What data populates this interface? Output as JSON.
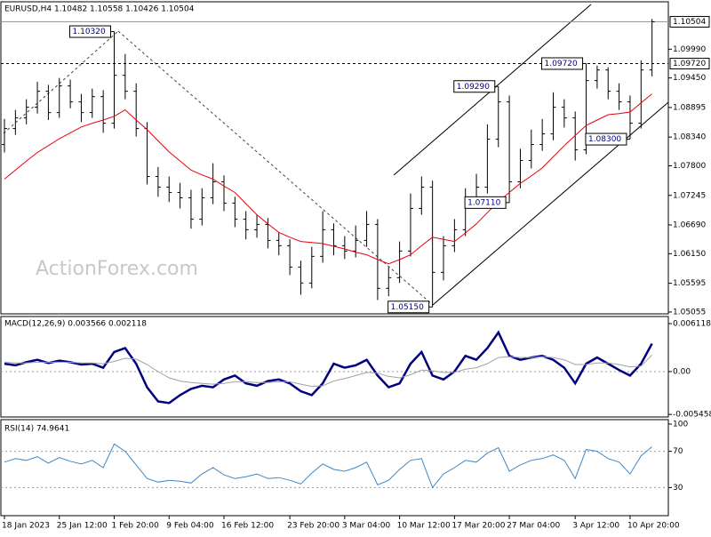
{
  "chart_data": [
    {
      "type": "ohlc",
      "title": "EURUSD,H4  1.10482 1.10558 1.10426 1.10504",
      "watermark": "ActionForex.com",
      "color": "#000000",
      "categories": [
        "18 Jan 2023",
        null,
        null,
        null,
        null,
        "25 Jan 12:00",
        null,
        null,
        null,
        null,
        "1 Feb 20:00",
        null,
        null,
        null,
        null,
        "9 Feb 04:00",
        null,
        null,
        null,
        null,
        "16 Feb 12:00",
        null,
        null,
        null,
        null,
        null,
        "23 Feb 20:00",
        null,
        null,
        null,
        null,
        "3 Mar 04:00",
        null,
        null,
        null,
        null,
        "10 Mar 12:00",
        null,
        null,
        null,
        null,
        "17 Mar 20:00",
        null,
        null,
        null,
        null,
        "27 Mar 04:00",
        null,
        null,
        null,
        null,
        null,
        "3 Apr 12:00",
        null,
        null,
        null,
        null,
        "10 Apr 20:00",
        null,
        null
      ],
      "open": [
        1.082,
        1.085,
        1.087,
        1.089,
        1.092,
        1.088,
        1.093,
        1.09,
        1.088,
        1.091,
        1.086,
        1.095,
        1.092,
        1.085,
        1.076,
        1.074,
        1.073,
        1.072,
        1.068,
        1.072,
        1.075,
        1.071,
        1.068,
        1.066,
        1.067,
        1.064,
        1.063,
        1.059,
        1.056,
        1.061,
        1.066,
        1.063,
        1.062,
        1.064,
        1.067,
        1.055,
        1.057,
        1.062,
        1.07,
        1.074,
        1.058,
        1.063,
        1.066,
        1.072,
        1.074,
        1.083,
        1.09,
        1.075,
        1.079,
        1.082,
        1.084,
        1.089,
        1.087,
        1.081,
        1.094,
        1.096,
        1.092,
        1.09,
        1.086,
        1.096
      ],
      "high": [
        1.0868,
        1.0885,
        1.0905,
        1.0938,
        1.0932,
        1.0945,
        1.0942,
        1.0915,
        1.0925,
        1.0922,
        1.1032,
        1.099,
        1.0935,
        1.0862,
        1.0778,
        1.076,
        1.0748,
        1.0735,
        1.0738,
        1.0785,
        1.0762,
        1.0722,
        1.0695,
        1.0688,
        1.0682,
        1.0655,
        1.0642,
        1.0602,
        1.0628,
        1.0695,
        1.0672,
        1.0648,
        1.0668,
        1.0695,
        1.068,
        1.059,
        1.0638,
        1.0728,
        1.076,
        1.0752,
        1.0648,
        1.068,
        1.0738,
        1.0765,
        1.0858,
        1.0929,
        1.0912,
        1.0812,
        1.0848,
        1.0868,
        1.0918,
        1.0905,
        1.0882,
        1.0972,
        1.0968,
        1.0965,
        1.0935,
        1.0912,
        1.0978,
        1.10558
      ],
      "low": [
        1.0805,
        1.0838,
        1.0858,
        1.0878,
        1.0866,
        1.087,
        1.0888,
        1.0862,
        1.087,
        1.0842,
        1.085,
        1.0905,
        1.0835,
        1.0745,
        1.0722,
        1.0712,
        1.07,
        1.0662,
        1.0668,
        1.0708,
        1.0695,
        1.0665,
        1.0642,
        1.0645,
        1.0625,
        1.0612,
        1.0575,
        1.0538,
        1.055,
        1.0598,
        1.0612,
        1.0605,
        1.0608,
        1.0628,
        1.0528,
        1.0535,
        1.056,
        1.061,
        1.0688,
        1.0515,
        1.0565,
        1.0618,
        1.0648,
        1.0705,
        1.0728,
        1.0815,
        1.0711,
        1.0738,
        1.0775,
        1.0808,
        1.0828,
        1.0852,
        1.079,
        1.0802,
        1.0925,
        1.0905,
        1.0885,
        1.083,
        1.085,
        1.0948
      ],
      "close": [
        1.085,
        1.087,
        1.089,
        1.092,
        1.088,
        1.093,
        1.09,
        1.088,
        1.091,
        1.086,
        1.095,
        1.092,
        1.085,
        1.076,
        1.074,
        1.073,
        1.072,
        1.068,
        1.072,
        1.075,
        1.071,
        1.068,
        1.066,
        1.067,
        1.064,
        1.063,
        1.059,
        1.056,
        1.061,
        1.066,
        1.063,
        1.062,
        1.064,
        1.067,
        1.055,
        1.057,
        1.062,
        1.07,
        1.074,
        1.058,
        1.063,
        1.066,
        1.072,
        1.074,
        1.083,
        1.09,
        1.075,
        1.079,
        1.082,
        1.084,
        1.089,
        1.087,
        1.081,
        1.094,
        1.096,
        1.092,
        1.09,
        1.086,
        1.096,
        1.10504
      ],
      "overlay": {
        "color": "#e8000b",
        "values": [
          1.0755,
          1.0772,
          1.0789,
          1.0805,
          1.0818,
          1.0831,
          1.0842,
          1.0853,
          1.086,
          1.0866,
          1.0873,
          1.0885,
          1.0866,
          1.0848,
          1.0827,
          1.0806,
          1.0789,
          1.0772,
          1.0763,
          1.0755,
          1.0742,
          1.073,
          1.0709,
          1.0688,
          1.0671,
          1.0655,
          1.0646,
          1.0638,
          1.0636,
          1.0634,
          1.0629,
          1.0624,
          1.0618,
          1.0613,
          1.0604,
          1.0596,
          1.0604,
          1.0613,
          1.063,
          1.0646,
          1.0642,
          1.0638,
          1.0654,
          1.0671,
          1.0692,
          1.0713,
          1.073,
          1.0747,
          1.0761,
          1.0776,
          1.0797,
          1.0818,
          1.0837,
          1.0856,
          1.0866,
          1.0876,
          1.0878,
          1.0881,
          1.0898,
          1.0915
        ]
      },
      "ylim": [
        1.05021,
        1.1088
      ],
      "yticks": [
        {
          "value": 1.0999,
          "label": "1.09990"
        },
        {
          "value": 1.0945,
          "label": "1.09450"
        },
        1.08895,
        {
          "value": 1.0834,
          "label": "1.08340"
        },
        {
          "value": 1.078,
          "label": "1.07800"
        },
        1.07245,
        {
          "value": 1.0669,
          "label": "1.06690"
        },
        {
          "value": 1.0615,
          "label": "1.06150"
        },
        1.05595,
        1.05055
      ],
      "price_lines": [
        {
          "value": 1.10504,
          "label": "1.10504",
          "style": "solid"
        },
        {
          "value": 1.0972,
          "label": "1.09720",
          "style": "dashed"
        }
      ],
      "annotations": [
        {
          "value": 1.1032,
          "label": "1.10320"
        },
        {
          "value": 1.0929,
          "label": "1.09290"
        },
        {
          "value": 1.0972,
          "label": "1.09720"
        },
        {
          "value": 1.0711,
          "label": "1.07110"
        },
        {
          "value": 1.083,
          "label": "1.08300"
        },
        {
          "value": 1.0515,
          "label": "1.05150"
        }
      ]
    },
    {
      "type": "line",
      "title": "MACD(12,26,9) 0.003566 0.002118",
      "series": [
        {
          "color": "#000080",
          "width": 2.5,
          "values": [
            0.001,
            0.0008,
            0.0012,
            0.0015,
            0.0011,
            0.0014,
            0.0012,
            0.0009,
            0.001,
            0.0005,
            0.0025,
            0.003,
            0.001,
            -0.002,
            -0.0038,
            -0.004,
            -0.003,
            -0.0022,
            -0.0018,
            -0.002,
            -0.001,
            -0.0005,
            -0.0015,
            -0.0018,
            -0.0012,
            -0.001,
            -0.0015,
            -0.0025,
            -0.003,
            -0.0015,
            0.001,
            0.0005,
            0.0008,
            0.0015,
            -0.0005,
            -0.002,
            -0.0015,
            0.001,
            0.0025,
            -0.0005,
            -0.001,
            0,
            0.002,
            0.0015,
            0.003,
            0.005,
            0.002,
            0.0015,
            0.0018,
            0.002,
            0.0015,
            0.0005,
            -0.0015,
            0.001,
            0.0018,
            0.001,
            0.0002,
            -0.0005,
            0.001,
            0.003566
          ]
        },
        {
          "color": "#a0a0a0",
          "width": 1,
          "values": [
            0.0012,
            0.0011,
            0.0011,
            0.0012,
            0.0012,
            0.0012,
            0.0012,
            0.0011,
            0.0011,
            0.001,
            0.0013,
            0.0017,
            0.0016,
            0.0009,
            0,
            -0.0008,
            -0.0012,
            -0.0014,
            -0.0015,
            -0.0016,
            -0.0015,
            -0.0013,
            -0.0013,
            -0.0014,
            -0.0014,
            -0.0013,
            -0.0013,
            -0.0016,
            -0.0019,
            -0.0018,
            -0.0012,
            -0.0009,
            -0.0005,
            -0.0001,
            -0.0002,
            -0.0006,
            -0.0008,
            -0.0004,
            0.0002,
            0.0001,
            -0.0001,
            -0.0001,
            0.0003,
            0.0005,
            0.001,
            0.0018,
            0.0019,
            0.0018,
            0.0018,
            0.0019,
            0.0018,
            0.0015,
            0.0009,
            0.0009,
            0.0011,
            0.0011,
            0.0009,
            0.0006,
            0.0007,
            0.002118
          ]
        }
      ],
      "ylim": [
        -0.00567,
        0.00691
      ],
      "yticks": [
        0.006118,
        {
          "value": 0,
          "label": "0.00"
        },
        -0.005458
      ],
      "levels": [
        0
      ]
    },
    {
      "type": "line",
      "title": "RSI(14) 74.9641",
      "series": [
        {
          "color": "#3f87c6",
          "width": 1,
          "values": [
            58,
            62,
            60,
            64,
            57,
            63,
            59,
            56,
            60,
            52,
            78,
            70,
            55,
            40,
            36,
            38,
            37,
            35,
            45,
            52,
            44,
            40,
            42,
            45,
            40,
            41,
            38,
            34,
            46,
            56,
            50,
            48,
            52,
            58,
            33,
            38,
            50,
            60,
            62,
            30,
            45,
            52,
            60,
            58,
            68,
            74,
            48,
            55,
            60,
            62,
            66,
            60,
            40,
            72,
            70,
            62,
            58,
            45,
            65,
            74.9641
          ]
        }
      ],
      "ylim": [
        0,
        100
      ],
      "yticks": [
        100,
        70,
        30
      ],
      "levels": [
        30,
        70
      ]
    }
  ]
}
